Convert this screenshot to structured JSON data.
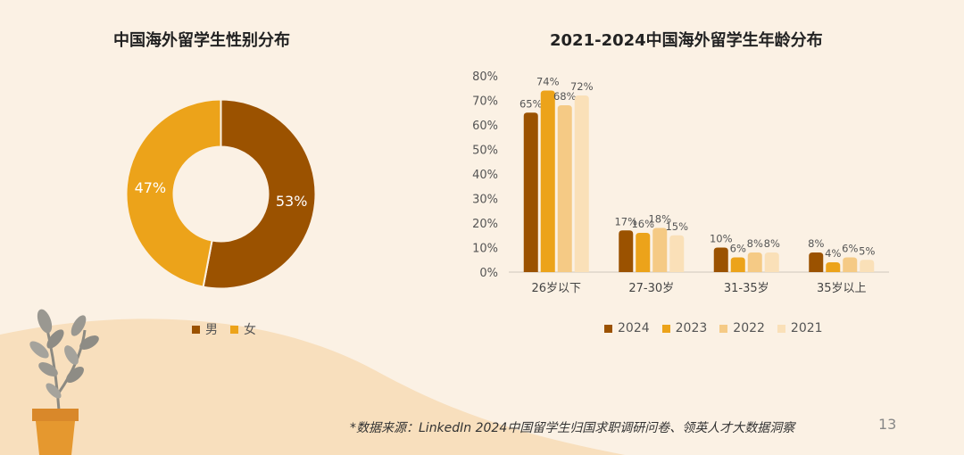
{
  "colors": {
    "background": "#fbf1e4",
    "blob": "#f8dfbd",
    "male": "#9b5200",
    "female": "#eca31a",
    "s2024": "#9b5200",
    "s2023": "#eca31a",
    "s2022": "#f5ca85",
    "s2021": "#fae0b8"
  },
  "decoration": {
    "plant_icon": "potted-plant-icon"
  },
  "chart_data": [
    {
      "type": "pie",
      "variant": "donut",
      "title": "中国海外留学生性别分布",
      "slices": [
        {
          "name": "男",
          "value": 53,
          "label": "53%",
          "color": "#9b5200"
        },
        {
          "name": "女",
          "value": 47,
          "label": "47%",
          "color": "#eca31a"
        }
      ],
      "legend_position": "bottom"
    },
    {
      "type": "bar",
      "title": "2021-2024中国海外留学生年龄分布",
      "categories": [
        "26岁以下",
        "27-30岁",
        "31-35岁",
        "35岁以上"
      ],
      "series": [
        {
          "name": "2024",
          "values": [
            65,
            17,
            10,
            8
          ],
          "color": "#9b5200"
        },
        {
          "name": "2023",
          "values": [
            74,
            16,
            6,
            4
          ],
          "color": "#eca31a"
        },
        {
          "name": "2022",
          "values": [
            68,
            18,
            8,
            6
          ],
          "color": "#f5ca85"
        },
        {
          "name": "2021",
          "values": [
            72,
            15,
            8,
            5
          ],
          "color": "#fae0b8"
        }
      ],
      "yticks": [
        "0%",
        "10%",
        "20%",
        "30%",
        "40%",
        "50%",
        "60%",
        "70%",
        "80%"
      ],
      "ylim": [
        0,
        80
      ],
      "grid": false,
      "legend_position": "bottom"
    }
  ],
  "footer": {
    "source": "*数据来源：LinkedIn 2024中国留学生归国求职调研问卷、领英人才大数据洞察",
    "page": "13"
  }
}
